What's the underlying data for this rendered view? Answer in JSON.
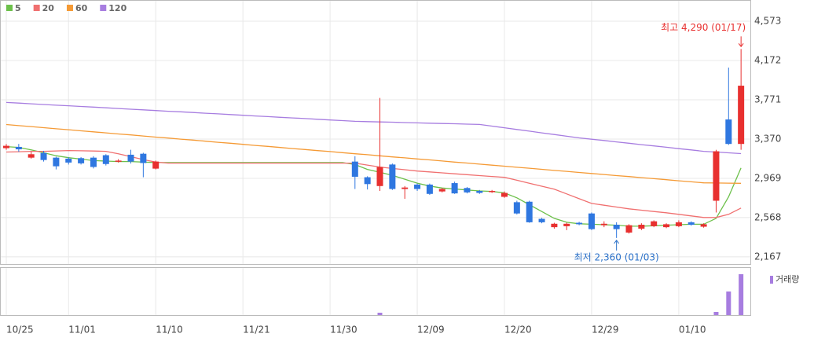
{
  "chart_data": {
    "type": "candlestick",
    "categories": [
      "10/25",
      null,
      null,
      null,
      null,
      "11/01",
      null,
      null,
      null,
      null,
      null,
      null,
      "11/10",
      null,
      null,
      null,
      null,
      null,
      null,
      "11/21",
      null,
      null,
      null,
      null,
      null,
      null,
      "11/30",
      null,
      null,
      null,
      null,
      null,
      null,
      "12/09",
      null,
      null,
      null,
      null,
      null,
      null,
      "12/20",
      null,
      null,
      null,
      null,
      null,
      null,
      "12/29",
      null,
      null,
      null,
      null,
      null,
      null,
      "01/10",
      null,
      null,
      null,
      null,
      null
    ],
    "open": [
      3277,
      3290,
      3180,
      3228,
      3180,
      3170,
      3175,
      3180,
      3205,
      3140,
      3210,
      3220,
      3068,
      null,
      null,
      null,
      null,
      null,
      null,
      null,
      null,
      null,
      null,
      null,
      null,
      null,
      null,
      null,
      3140,
      2980,
      2890,
      3110,
      2860,
      2905,
      2905,
      2835,
      2920,
      2870,
      2840,
      2830,
      2780,
      2725,
      2730,
      2555,
      2470,
      2480,
      2515,
      2610,
      2490,
      2495,
      2415,
      2455,
      2480,
      2470,
      2480,
      2520,
      2475,
      2740,
      3570,
      3320
    ],
    "high": [
      3320,
      3320,
      3240,
      3250,
      3190,
      3185,
      3185,
      3195,
      3215,
      3165,
      3260,
      3230,
      3150,
      null,
      null,
      null,
      null,
      null,
      null,
      null,
      null,
      null,
      null,
      null,
      null,
      null,
      null,
      null,
      3195,
      2990,
      3790,
      3120,
      2890,
      2915,
      2915,
      2870,
      2935,
      2880,
      2850,
      2850,
      2835,
      2740,
      2740,
      2565,
      2515,
      2515,
      2525,
      2620,
      2530,
      2520,
      2500,
      2510,
      2540,
      2510,
      2540,
      2530,
      2510,
      3260,
      4100,
      4290
    ],
    "low": [
      3260,
      3240,
      3170,
      3140,
      3060,
      3110,
      3110,
      3070,
      3100,
      3130,
      3120,
      2980,
      3060,
      null,
      null,
      null,
      null,
      null,
      null,
      null,
      null,
      null,
      null,
      null,
      null,
      null,
      null,
      null,
      2860,
      2855,
      2840,
      2850,
      2760,
      2840,
      2800,
      2825,
      2810,
      2815,
      2810,
      2820,
      2770,
      2600,
      2515,
      2510,
      2455,
      2440,
      2490,
      2440,
      2470,
      2360,
      2405,
      2440,
      2470,
      2460,
      2470,
      2485,
      2465,
      2620,
      3310,
      3260
    ],
    "close": [
      3301,
      3265,
      3215,
      3156,
      3092,
      3130,
      3122,
      3085,
      3115,
      3150,
      3140,
      3125,
      3140,
      null,
      null,
      null,
      null,
      null,
      null,
      null,
      null,
      null,
      null,
      null,
      null,
      null,
      null,
      null,
      2985,
      2910,
      3085,
      2860,
      2875,
      2860,
      2810,
      2860,
      2815,
      2825,
      2820,
      2840,
      2820,
      2610,
      2520,
      2520,
      2505,
      2505,
      2500,
      2450,
      2505,
      2450,
      2490,
      2495,
      2530,
      2500,
      2520,
      2495,
      2500,
      3245,
      3320,
      3915
    ],
    "up_color": "#e8302f",
    "down_color": "#2f77e0",
    "series": [
      {
        "name": "5",
        "color": "#6cc04a",
        "values": [
          3293,
          3285,
          3260,
          3230,
          3200,
          3180,
          3165,
          3150,
          3145,
          3140,
          3140,
          3135,
          3130,
          3130,
          3130,
          3130,
          3130,
          3130,
          3130,
          3130,
          3130,
          3130,
          3130,
          3130,
          3130,
          3130,
          3130,
          3130,
          3110,
          3060,
          3030,
          3000,
          2960,
          2920,
          2890,
          2870,
          2860,
          2850,
          2840,
          2835,
          2820,
          2770,
          2700,
          2630,
          2560,
          2520,
          2505,
          2500,
          2495,
          2490,
          2480,
          2480,
          2485,
          2490,
          2495,
          2500,
          2500,
          2560,
          2780,
          3075
        ]
      },
      {
        "name": "20",
        "color": "#f07070",
        "values": [
          3237,
          3241,
          3245,
          3245,
          3249,
          3253,
          3250,
          3248,
          3245,
          3220,
          3190,
          3160,
          3135,
          3124,
          3124,
          3124,
          3124,
          3124,
          3124,
          3124,
          3124,
          3124,
          3124,
          3124,
          3124,
          3124,
          3124,
          3124,
          3124,
          3104,
          3084,
          3070,
          3057,
          3043,
          3034,
          3025,
          3015,
          3006,
          2997,
          2988,
          2979,
          2949,
          2918,
          2888,
          2858,
          2810,
          2761,
          2713,
          2694,
          2676,
          2657,
          2644,
          2630,
          2617,
          2601,
          2585,
          2569,
          2569,
          2601,
          2665
        ]
      },
      {
        "name": "60",
        "color": "#f59a35",
        "values": [
          3518,
          3507,
          3497,
          3486,
          3475,
          3465,
          3454,
          3444,
          3433,
          3422,
          3412,
          3401,
          3390,
          3380,
          3369,
          3359,
          3348,
          3337,
          3327,
          3316,
          3305,
          3295,
          3284,
          3273,
          3263,
          3252,
          3242,
          3231,
          3220,
          3210,
          3199,
          3188,
          3178,
          3167,
          3157,
          3146,
          3135,
          3125,
          3114,
          3103,
          3093,
          3082,
          3072,
          3061,
          3050,
          3040,
          3029,
          3018,
          3008,
          2997,
          2987,
          2976,
          2965,
          2955,
          2944,
          2933,
          2923,
          2921,
          2920,
          2918
        ]
      },
      {
        "name": "120",
        "color": "#a77de0",
        "values": [
          3744,
          3737,
          3730,
          3723,
          3716,
          3710,
          3703,
          3696,
          3689,
          3682,
          3675,
          3668,
          3661,
          3654,
          3648,
          3641,
          3634,
          3627,
          3620,
          3613,
          3606,
          3599,
          3592,
          3586,
          3579,
          3572,
          3565,
          3558,
          3551,
          3548,
          3545,
          3542,
          3538,
          3535,
          3532,
          3529,
          3526,
          3522,
          3519,
          3502,
          3485,
          3468,
          3451,
          3433,
          3416,
          3399,
          3382,
          3368,
          3355,
          3341,
          3327,
          3313,
          3300,
          3286,
          3272,
          3259,
          3245,
          3237,
          3229,
          3221
        ]
      }
    ],
    "ylim": [
      2094,
      4790
    ],
    "yticks": [
      {
        "value": 2167,
        "label": "2,167"
      },
      {
        "value": 2568,
        "label": "2,568"
      },
      {
        "value": 2969,
        "label": "2,969"
      },
      {
        "value": 3370,
        "label": "3,370"
      },
      {
        "value": 3771,
        "label": "3,771"
      },
      {
        "value": 4172,
        "label": "4,172"
      },
      {
        "value": 4573,
        "label": "4,573"
      }
    ],
    "grid": true,
    "annotations": {
      "high": {
        "text": "최고 4,290 (01/17)",
        "color": "#e8302f"
      },
      "low": {
        "text": "최저 2,360 (01/03)",
        "color": "#2a70c8"
      }
    },
    "volume": {
      "name": "거래량",
      "color": "#a77de0",
      "ylim": [
        0,
        60
      ],
      "values": [
        0,
        0,
        0,
        0,
        0,
        0,
        0,
        0,
        0,
        0,
        0,
        0,
        0,
        0,
        0,
        0,
        0,
        0,
        0,
        0,
        0,
        0,
        0,
        0,
        0,
        0,
        0,
        0,
        0,
        0,
        3,
        0,
        0,
        0,
        0,
        0,
        0,
        0,
        0,
        0,
        0,
        0,
        0,
        0,
        0,
        0,
        0,
        0,
        0,
        0,
        0,
        0,
        0,
        0,
        0,
        0,
        0,
        4,
        30,
        52
      ]
    }
  }
}
